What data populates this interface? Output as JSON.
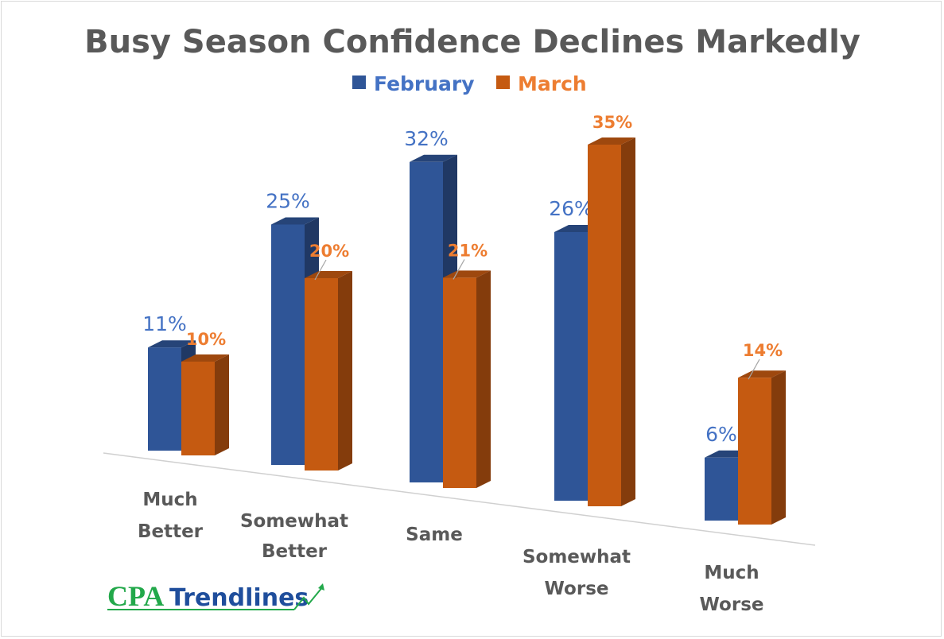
{
  "chart_data": {
    "type": "bar",
    "title": "Busy Season Confidence Declines Markedly",
    "categories": [
      "Much Better",
      "Somewhat Better",
      "Same",
      "Somewhat Worse",
      "Much Worse"
    ],
    "category_lines": [
      [
        "Much",
        "Better"
      ],
      [
        "Somewhat",
        "Better"
      ],
      [
        "Same"
      ],
      [
        "Somewhat",
        "Worse"
      ],
      [
        "Much",
        "Worse"
      ]
    ],
    "series": [
      {
        "name": "February",
        "values": [
          11,
          25,
          32,
          26,
          6
        ],
        "labels": [
          "11%",
          "25%",
          "32%",
          "26%",
          "6%"
        ],
        "color": "#2f5597"
      },
      {
        "name": "March",
        "values": [
          10,
          20,
          21,
          35,
          14
        ],
        "labels": [
          "10%",
          "20%",
          "21%",
          "35%",
          "14%"
        ],
        "color": "#c55a11"
      }
    ],
    "unit": "%",
    "style": "3d-clustered-column",
    "legend_position": "top",
    "grid": false,
    "label_colors": {
      "February": "#4472c4",
      "March": "#ed7d31"
    }
  },
  "logo": {
    "text_left": "CPA",
    "text_right": "Trendlines",
    "color_left": "#22a84a",
    "color_right": "#1f4e9c"
  }
}
